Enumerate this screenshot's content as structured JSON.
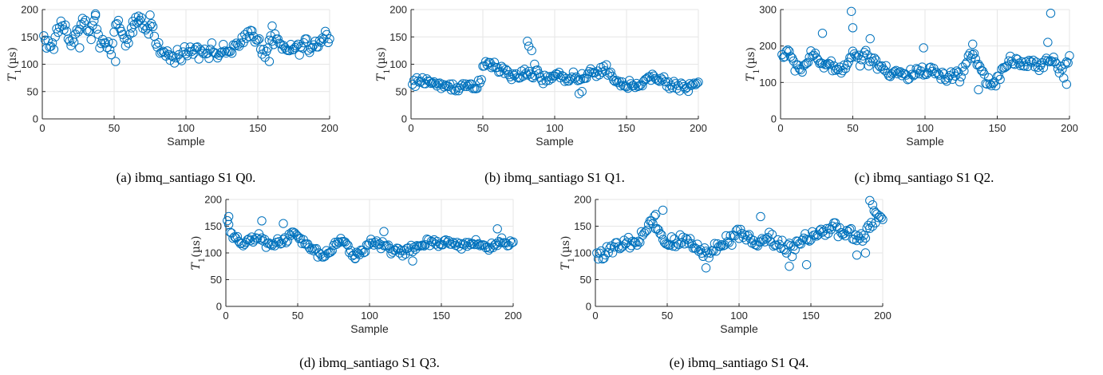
{
  "figure": {
    "marker_color": "#0072BD",
    "grid_color": "#e6e6e6",
    "axis_color": "#262626"
  },
  "chart_data": [
    {
      "id": "a",
      "type": "scatter",
      "caption": "(a) ibmq_santiago S1 Q0.",
      "xlabel": "Sample",
      "ylabel": "T1(µs)",
      "ylabel_main": "T",
      "ylabel_sub": "1",
      "ylabel_unit": "(µs)",
      "xlim": [
        0,
        200
      ],
      "ylim": [
        0,
        200
      ],
      "xticks": [
        0,
        50,
        100,
        150,
        200
      ],
      "yticks": [
        0,
        50,
        100,
        150,
        200
      ],
      "grid": true,
      "anchors": [
        [
          1,
          150
        ],
        [
          3,
          140
        ],
        [
          5,
          135
        ],
        [
          8,
          130
        ],
        [
          10,
          160
        ],
        [
          13,
          175
        ],
        [
          16,
          165
        ],
        [
          19,
          140
        ],
        [
          22,
          150
        ],
        [
          25,
          165
        ],
        [
          28,
          175
        ],
        [
          31,
          170
        ],
        [
          34,
          160
        ],
        [
          37,
          185
        ],
        [
          40,
          130
        ],
        [
          43,
          145
        ],
        [
          46,
          130
        ],
        [
          48,
          115
        ],
        [
          50,
          165
        ],
        [
          53,
          175
        ],
        [
          56,
          140
        ],
        [
          59,
          145
        ],
        [
          62,
          160
        ],
        [
          65,
          175
        ],
        [
          68,
          180
        ],
        [
          71,
          170
        ],
        [
          74,
          160
        ],
        [
          77,
          175
        ],
        [
          80,
          135
        ],
        [
          83,
          120
        ],
        [
          86,
          118
        ],
        [
          89,
          115
        ],
        [
          92,
          108
        ],
        [
          95,
          120
        ],
        [
          98,
          125
        ],
        [
          101,
          118
        ],
        [
          104,
          125
        ],
        [
          107,
          130
        ],
        [
          110,
          125
        ],
        [
          113,
          130
        ],
        [
          116,
          120
        ],
        [
          119,
          125
        ],
        [
          122,
          118
        ],
        [
          125,
          122
        ],
        [
          128,
          120
        ],
        [
          131,
          125
        ],
        [
          134,
          135
        ],
        [
          137,
          130
        ],
        [
          140,
          140
        ],
        [
          143,
          155
        ],
        [
          146,
          160
        ],
        [
          149,
          150
        ],
        [
          152,
          130
        ],
        [
          155,
          120
        ],
        [
          158,
          150
        ],
        [
          161,
          145
        ],
        [
          164,
          140
        ],
        [
          167,
          130
        ],
        [
          170,
          125
        ],
        [
          173,
          130
        ],
        [
          176,
          128
        ],
        [
          179,
          125
        ],
        [
          182,
          140
        ],
        [
          185,
          130
        ],
        [
          188,
          130
        ],
        [
          191,
          135
        ],
        [
          194,
          140
        ],
        [
          197,
          150
        ],
        [
          200,
          150
        ]
      ],
      "noise": 11,
      "outliers": [
        [
          37,
          192
        ],
        [
          67,
          188
        ],
        [
          75,
          190
        ],
        [
          51,
          105
        ],
        [
          158,
          105
        ],
        [
          160,
          170
        ],
        [
          63,
          158
        ],
        [
          26,
          130
        ]
      ]
    },
    {
      "id": "b",
      "type": "scatter",
      "caption": "(b) ibmq_santiago S1 Q1.",
      "xlabel": "Sample",
      "ylabel": "T1(µs)",
      "ylabel_main": "T",
      "ylabel_sub": "1",
      "ylabel_unit": "(µs)",
      "xlim": [
        0,
        200
      ],
      "ylim": [
        0,
        200
      ],
      "xticks": [
        0,
        50,
        100,
        150,
        200
      ],
      "yticks": [
        0,
        50,
        100,
        150,
        200
      ],
      "grid": true,
      "anchors": [
        [
          1,
          62
        ],
        [
          5,
          68
        ],
        [
          10,
          72
        ],
        [
          15,
          65
        ],
        [
          20,
          60
        ],
        [
          25,
          62
        ],
        [
          30,
          58
        ],
        [
          35,
          60
        ],
        [
          40,
          62
        ],
        [
          45,
          60
        ],
        [
          48,
          70
        ],
        [
          51,
          95
        ],
        [
          54,
          100
        ],
        [
          57,
          98
        ],
        [
          60,
          92
        ],
        [
          63,
          90
        ],
        [
          66,
          85
        ],
        [
          69,
          80
        ],
        [
          72,
          78
        ],
        [
          75,
          80
        ],
        [
          78,
          82
        ],
        [
          81,
          78
        ],
        [
          84,
          80
        ],
        [
          87,
          85
        ],
        [
          90,
          75
        ],
        [
          93,
          72
        ],
        [
          96,
          72
        ],
        [
          99,
          75
        ],
        [
          102,
          80
        ],
        [
          105,
          78
        ],
        [
          108,
          72
        ],
        [
          111,
          80
        ],
        [
          114,
          78
        ],
        [
          117,
          72
        ],
        [
          120,
          70
        ],
        [
          123,
          80
        ],
        [
          126,
          85
        ],
        [
          129,
          80
        ],
        [
          132,
          90
        ],
        [
          135,
          95
        ],
        [
          138,
          85
        ],
        [
          141,
          70
        ],
        [
          144,
          65
        ],
        [
          147,
          62
        ],
        [
          150,
          62
        ],
        [
          153,
          60
        ],
        [
          156,
          65
        ],
        [
          159,
          65
        ],
        [
          162,
          68
        ],
        [
          165,
          72
        ],
        [
          168,
          75
        ],
        [
          171,
          70
        ],
        [
          174,
          70
        ],
        [
          177,
          68
        ],
        [
          180,
          62
        ],
        [
          183,
          60
        ],
        [
          186,
          58
        ],
        [
          189,
          60
        ],
        [
          192,
          60
        ],
        [
          195,
          62
        ],
        [
          198,
          62
        ],
        [
          200,
          65
        ]
      ],
      "noise": 8,
      "outliers": [
        [
          81,
          142
        ],
        [
          82,
          133
        ],
        [
          84,
          125
        ],
        [
          86,
          100
        ],
        [
          119,
          50
        ],
        [
          117,
          46
        ]
      ]
    },
    {
      "id": "c",
      "type": "scatter",
      "caption": "(c) ibmq_santiago S1 Q2.",
      "xlabel": "Sample",
      "ylabel": "T1(µs)",
      "ylabel_main": "T",
      "ylabel_sub": "1",
      "ylabel_unit": "(µs)",
      "xlim": [
        0,
        200
      ],
      "ylim": [
        0,
        300
      ],
      "xticks": [
        0,
        50,
        100,
        150,
        200
      ],
      "yticks": [
        0,
        100,
        200,
        300
      ],
      "grid": true,
      "anchors": [
        [
          1,
          175
        ],
        [
          5,
          180
        ],
        [
          10,
          150
        ],
        [
          15,
          135
        ],
        [
          20,
          170
        ],
        [
          25,
          165
        ],
        [
          30,
          150
        ],
        [
          35,
          140
        ],
        [
          40,
          135
        ],
        [
          45,
          150
        ],
        [
          48,
          170
        ],
        [
          52,
          180
        ],
        [
          55,
          160
        ],
        [
          58,
          175
        ],
        [
          62,
          165
        ],
        [
          65,
          160
        ],
        [
          68,
          150
        ],
        [
          72,
          140
        ],
        [
          76,
          125
        ],
        [
          80,
          130
        ],
        [
          84,
          120
        ],
        [
          88,
          115
        ],
        [
          92,
          125
        ],
        [
          96,
          130
        ],
        [
          100,
          115
        ],
        [
          104,
          135
        ],
        [
          108,
          125
        ],
        [
          112,
          110
        ],
        [
          116,
          115
        ],
        [
          120,
          110
        ],
        [
          125,
          120
        ],
        [
          128,
          140
        ],
        [
          132,
          175
        ],
        [
          136,
          160
        ],
        [
          140,
          120
        ],
        [
          144,
          100
        ],
        [
          148,
          105
        ],
        [
          152,
          120
        ],
        [
          156,
          145
        ],
        [
          160,
          165
        ],
        [
          164,
          160
        ],
        [
          168,
          145
        ],
        [
          172,
          155
        ],
        [
          176,
          150
        ],
        [
          180,
          140
        ],
        [
          184,
          165
        ],
        [
          188,
          170
        ],
        [
          192,
          140
        ],
        [
          196,
          125
        ],
        [
          200,
          160
        ]
      ],
      "noise": 15,
      "outliers": [
        [
          49,
          295
        ],
        [
          50,
          250
        ],
        [
          29,
          235
        ],
        [
          187,
          290
        ],
        [
          185,
          210
        ],
        [
          99,
          195
        ],
        [
          133,
          205
        ],
        [
          198,
          95
        ],
        [
          137,
          80
        ],
        [
          62,
          220
        ]
      ]
    },
    {
      "id": "d",
      "type": "scatter",
      "caption": "(d) ibmq_santiago S1 Q3.",
      "xlabel": "Sample",
      "ylabel": "T1(µs)",
      "ylabel_main": "T",
      "ylabel_sub": "1",
      "ylabel_unit": "(µs)",
      "xlim": [
        0,
        200
      ],
      "ylim": [
        0,
        200
      ],
      "xticks": [
        0,
        50,
        100,
        150,
        200
      ],
      "yticks": [
        0,
        50,
        100,
        150,
        200
      ],
      "grid": true,
      "anchors": [
        [
          1,
          160
        ],
        [
          4,
          130
        ],
        [
          8,
          122
        ],
        [
          12,
          118
        ],
        [
          16,
          125
        ],
        [
          20,
          122
        ],
        [
          24,
          128
        ],
        [
          28,
          115
        ],
        [
          32,
          118
        ],
        [
          36,
          120
        ],
        [
          40,
          125
        ],
        [
          44,
          130
        ],
        [
          48,
          135
        ],
        [
          52,
          125
        ],
        [
          56,
          115
        ],
        [
          60,
          105
        ],
        [
          64,
          100
        ],
        [
          68,
          95
        ],
        [
          72,
          100
        ],
        [
          76,
          115
        ],
        [
          80,
          120
        ],
        [
          84,
          115
        ],
        [
          88,
          100
        ],
        [
          92,
          98
        ],
        [
          96,
          105
        ],
        [
          100,
          120
        ],
        [
          104,
          118
        ],
        [
          108,
          115
        ],
        [
          112,
          110
        ],
        [
          116,
          108
        ],
        [
          120,
          105
        ],
        [
          124,
          100
        ],
        [
          128,
          105
        ],
        [
          132,
          110
        ],
        [
          136,
          115
        ],
        [
          140,
          118
        ],
        [
          144,
          118
        ],
        [
          148,
          115
        ],
        [
          152,
          118
        ],
        [
          156,
          120
        ],
        [
          160,
          118
        ],
        [
          164,
          115
        ],
        [
          168,
          118
        ],
        [
          172,
          120
        ],
        [
          176,
          115
        ],
        [
          180,
          110
        ],
        [
          184,
          112
        ],
        [
          188,
          118
        ],
        [
          192,
          120
        ],
        [
          196,
          118
        ],
        [
          200,
          118
        ]
      ],
      "noise": 7,
      "outliers": [
        [
          2,
          168
        ],
        [
          25,
          160
        ],
        [
          40,
          155
        ],
        [
          189,
          145
        ],
        [
          110,
          140
        ],
        [
          130,
          85
        ],
        [
          90,
          90
        ]
      ]
    },
    {
      "id": "e",
      "type": "scatter",
      "caption": "(e) ibmq_santiago S1 Q4.",
      "xlabel": "Sample",
      "ylabel": "T1(µs)",
      "ylabel_main": "T",
      "ylabel_sub": "1",
      "ylabel_unit": "(µs)",
      "xlim": [
        0,
        200
      ],
      "ylim": [
        0,
        200
      ],
      "xticks": [
        0,
        50,
        100,
        150,
        200
      ],
      "yticks": [
        0,
        50,
        100,
        150,
        200
      ],
      "grid": true,
      "anchors": [
        [
          1,
          100
        ],
        [
          5,
          98
        ],
        [
          10,
          102
        ],
        [
          15,
          110
        ],
        [
          20,
          115
        ],
        [
          25,
          118
        ],
        [
          30,
          120
        ],
        [
          35,
          140
        ],
        [
          40,
          155
        ],
        [
          44,
          140
        ],
        [
          48,
          125
        ],
        [
          52,
          115
        ],
        [
          56,
          118
        ],
        [
          60,
          125
        ],
        [
          64,
          120
        ],
        [
          68,
          115
        ],
        [
          72,
          110
        ],
        [
          76,
          100
        ],
        [
          80,
          105
        ],
        [
          84,
          110
        ],
        [
          88,
          115
        ],
        [
          92,
          125
        ],
        [
          96,
          130
        ],
        [
          100,
          140
        ],
        [
          104,
          135
        ],
        [
          108,
          125
        ],
        [
          112,
          118
        ],
        [
          116,
          120
        ],
        [
          120,
          130
        ],
        [
          124,
          125
        ],
        [
          128,
          115
        ],
        [
          132,
          110
        ],
        [
          136,
          108
        ],
        [
          140,
          118
        ],
        [
          144,
          125
        ],
        [
          148,
          130
        ],
        [
          152,
          135
        ],
        [
          156,
          138
        ],
        [
          160,
          140
        ],
        [
          164,
          145
        ],
        [
          168,
          140
        ],
        [
          172,
          135
        ],
        [
          176,
          140
        ],
        [
          180,
          130
        ],
        [
          184,
          125
        ],
        [
          188,
          135
        ],
        [
          192,
          155
        ],
        [
          196,
          165
        ],
        [
          200,
          165
        ]
      ],
      "noise": 12,
      "outliers": [
        [
          191,
          198
        ],
        [
          193,
          190
        ],
        [
          47,
          180
        ],
        [
          42,
          172
        ],
        [
          115,
          168
        ],
        [
          147,
          78
        ],
        [
          77,
          72
        ],
        [
          135,
          75
        ],
        [
          182,
          96
        ],
        [
          188,
          100
        ],
        [
          195,
          175
        ]
      ]
    }
  ]
}
